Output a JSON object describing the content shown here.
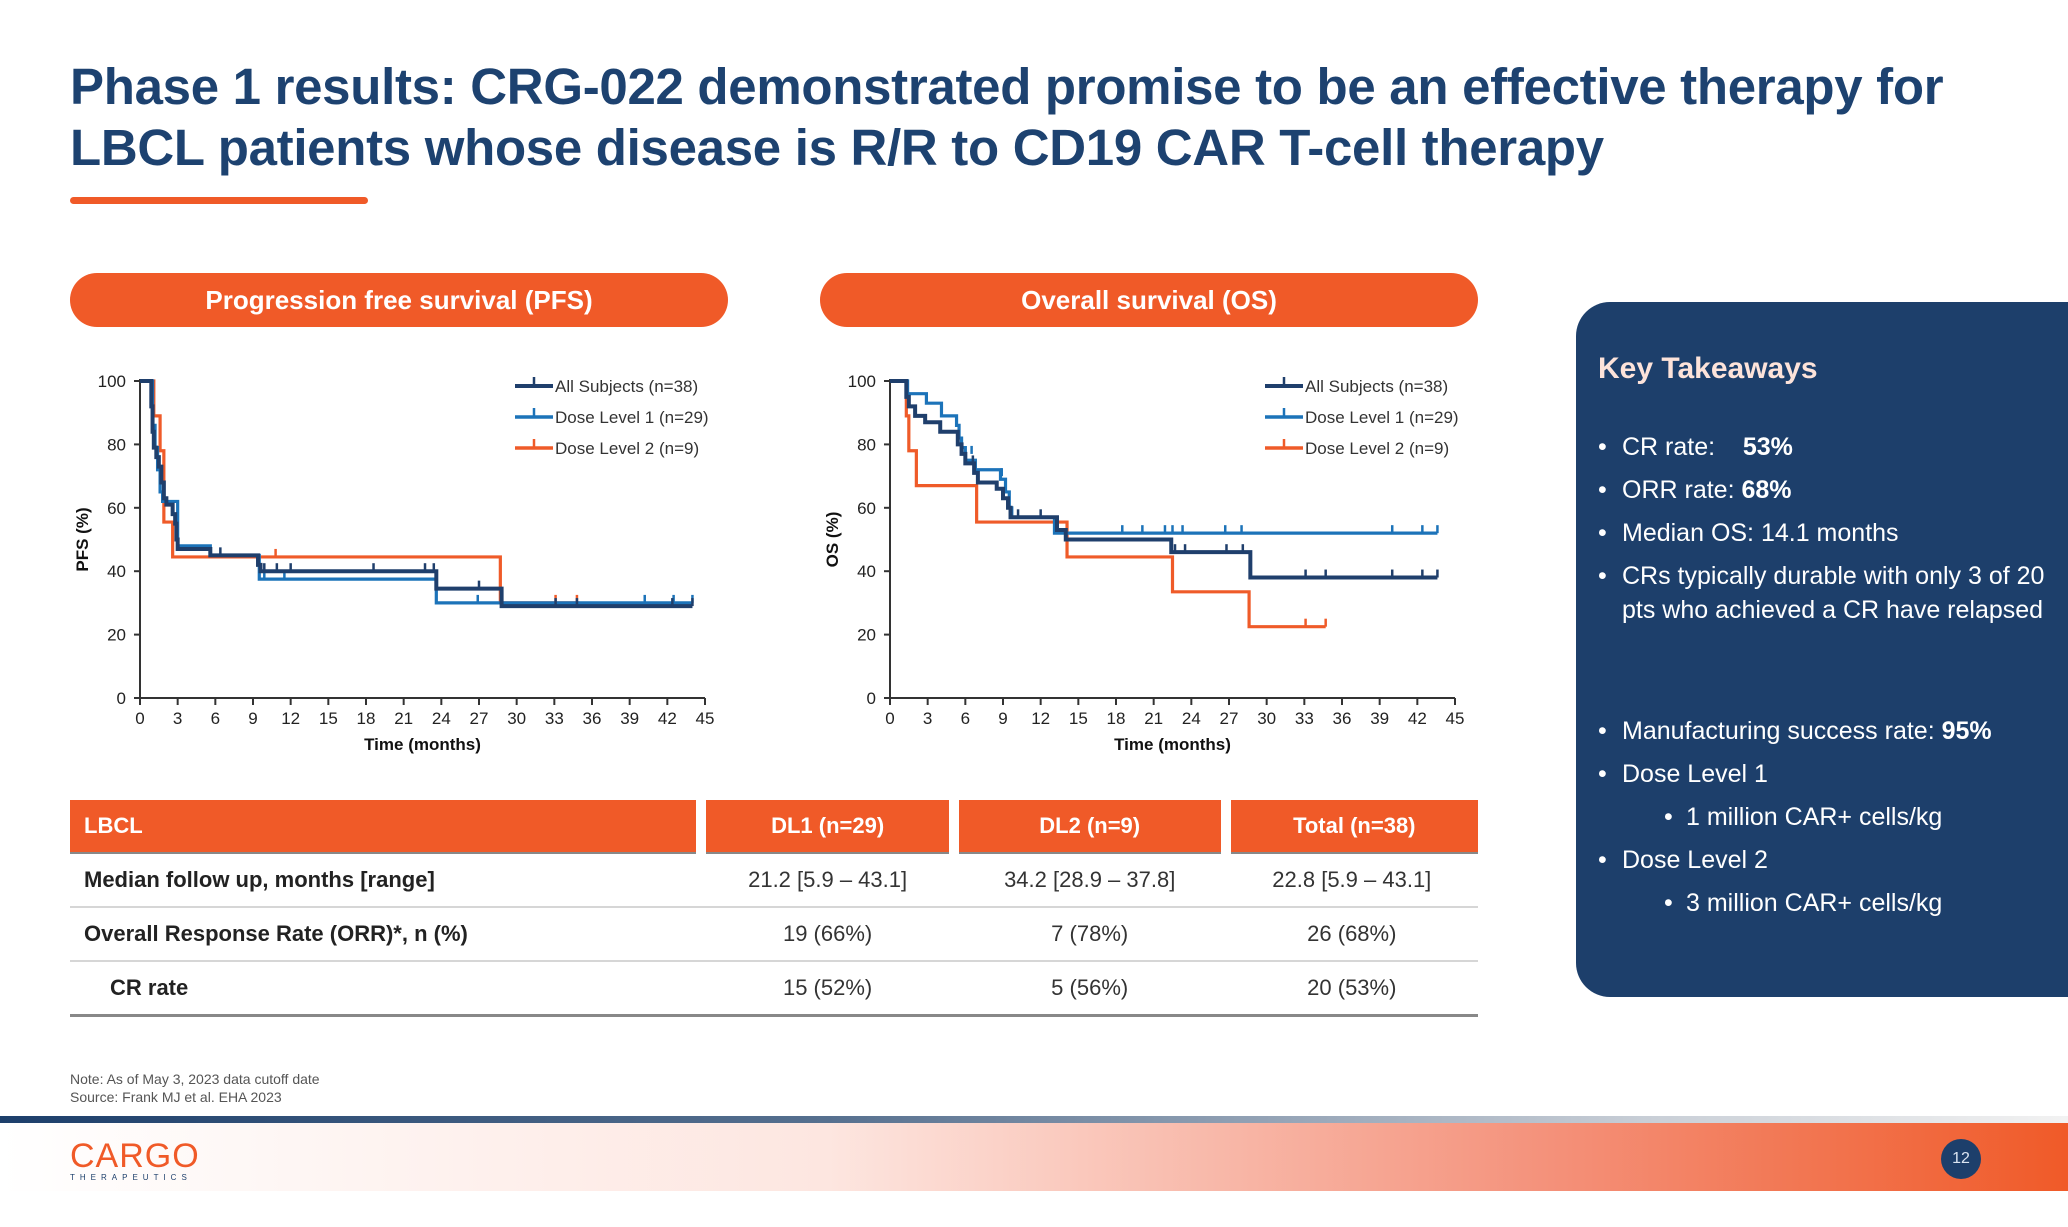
{
  "title": "Phase 1 results: CRG-022 demonstrated promise to be an effective therapy for LBCL patients whose disease is R/R to CD19 CAR T-cell therapy",
  "sections": {
    "pfs_header": "Progression free survival (PFS)",
    "os_header": "Overall survival (OS)"
  },
  "colors": {
    "accent_orange": "#f05a28",
    "navy": "#1d3f6b",
    "all_subjects": "#1f3f6c",
    "dose_level_1": "#1c73b9",
    "dose_level_2": "#ef5b29"
  },
  "chart_data": [
    {
      "type": "line",
      "subtype": "kaplan-meier",
      "title": "Progression free survival (PFS)",
      "xlabel": "Time (months)",
      "ylabel": "PFS (%)",
      "xlim": [
        0,
        45
      ],
      "ylim": [
        0,
        100
      ],
      "xticks": [
        0,
        3,
        6,
        9,
        12,
        15,
        18,
        21,
        24,
        27,
        30,
        33,
        36,
        39,
        42,
        45
      ],
      "yticks": [
        0,
        20,
        40,
        60,
        80,
        100
      ],
      "grid": false,
      "legend_position": "top-right",
      "series": [
        {
          "name": "All Subjects (n=38)",
          "color_key": "all_subjects",
          "steps": [
            [
              0,
              100
            ],
            [
              0.7,
              100
            ],
            [
              0.9,
              92
            ],
            [
              1.0,
              84
            ],
            [
              1.1,
              79
            ],
            [
              1.3,
              76
            ],
            [
              1.5,
              73
            ],
            [
              1.7,
              68
            ],
            [
              1.9,
              63
            ],
            [
              2.1,
              61
            ],
            [
              2.6,
              58
            ],
            [
              2.8,
              55
            ],
            [
              2.9,
              50
            ],
            [
              3.0,
              47
            ],
            [
              5.6,
              47
            ],
            [
              5.6,
              45
            ],
            [
              9.2,
              45
            ],
            [
              9.4,
              42
            ],
            [
              9.6,
              40
            ],
            [
              23.6,
              40
            ],
            [
              23.6,
              34.5
            ],
            [
              28.8,
              34.5
            ],
            [
              28.8,
              29
            ],
            [
              44,
              29
            ]
          ],
          "censors": [
            [
              6.4,
              45
            ],
            [
              9.9,
              40
            ],
            [
              10.9,
              40
            ],
            [
              12.0,
              40
            ],
            [
              18.6,
              40
            ],
            [
              22.7,
              40
            ],
            [
              23.4,
              40
            ],
            [
              27.0,
              34.5
            ],
            [
              33.1,
              29
            ],
            [
              34.8,
              29
            ],
            [
              42.4,
              29
            ],
            [
              44,
              29
            ]
          ]
        },
        {
          "name": "Dose Level 1 (n=29)",
          "color_key": "dose_level_1",
          "steps": [
            [
              0,
              100
            ],
            [
              0.8,
              100
            ],
            [
              1.0,
              86
            ],
            [
              1.2,
              79
            ],
            [
              1.4,
              72
            ],
            [
              1.6,
              65
            ],
            [
              1.8,
              62
            ],
            [
              2.9,
              62
            ],
            [
              3.0,
              52
            ],
            [
              3.0,
              48
            ],
            [
              5.6,
              48
            ],
            [
              5.6,
              45
            ],
            [
              9.3,
              45
            ],
            [
              9.5,
              41
            ],
            [
              9.5,
              37.5
            ],
            [
              23.6,
              37.5
            ],
            [
              23.6,
              30
            ],
            [
              44,
              30
            ]
          ],
          "censors": [
            [
              9.9,
              37.5
            ],
            [
              11.5,
              37.5
            ],
            [
              26.9,
              30
            ],
            [
              40.2,
              30
            ],
            [
              42.5,
              30
            ],
            [
              44,
              30
            ]
          ]
        },
        {
          "name": "Dose Level 2 (n=9)",
          "color_key": "dose_level_2",
          "steps": [
            [
              0,
              100
            ],
            [
              1.0,
              100
            ],
            [
              1.1,
              89
            ],
            [
              1.6,
              89
            ],
            [
              1.6,
              78
            ],
            [
              1.9,
              78
            ],
            [
              1.9,
              55.5
            ],
            [
              2.6,
              55.5
            ],
            [
              2.6,
              44.5
            ],
            [
              28.7,
              44.5
            ],
            [
              28.7,
              30
            ],
            [
              35,
              30
            ]
          ],
          "censors": [
            [
              10.8,
              44.5
            ],
            [
              33.1,
              30
            ],
            [
              34.8,
              30
            ]
          ]
        }
      ]
    },
    {
      "type": "line",
      "subtype": "kaplan-meier",
      "title": "Overall survival (OS)",
      "xlabel": "Time (months)",
      "ylabel": "OS (%)",
      "xlim": [
        0,
        45
      ],
      "ylim": [
        0,
        100
      ],
      "xticks": [
        0,
        3,
        6,
        9,
        12,
        15,
        18,
        21,
        24,
        27,
        30,
        33,
        36,
        39,
        42,
        45
      ],
      "yticks": [
        0,
        20,
        40,
        60,
        80,
        100
      ],
      "grid": false,
      "legend_position": "top-right",
      "series": [
        {
          "name": "All Subjects (n=38)",
          "color_key": "all_subjects",
          "steps": [
            [
              0,
              100
            ],
            [
              1.2,
              100
            ],
            [
              1.3,
              95
            ],
            [
              1.5,
              92
            ],
            [
              2.0,
              92
            ],
            [
              2.0,
              89
            ],
            [
              2.8,
              89
            ],
            [
              2.8,
              87
            ],
            [
              4.0,
              87
            ],
            [
              4.0,
              84
            ],
            [
              5.3,
              84
            ],
            [
              5.4,
              80
            ],
            [
              5.7,
              77
            ],
            [
              6.0,
              74
            ],
            [
              6.6,
              74
            ],
            [
              6.7,
              71
            ],
            [
              7.0,
              68
            ],
            [
              8.4,
              68
            ],
            [
              8.5,
              66
            ],
            [
              9.0,
              63
            ],
            [
              9.4,
              60
            ],
            [
              9.6,
              57
            ],
            [
              13.3,
              57
            ],
            [
              13.3,
              53
            ],
            [
              14.0,
              53
            ],
            [
              14.0,
              50
            ],
            [
              22.4,
              50
            ],
            [
              22.4,
              46
            ],
            [
              28.7,
              46
            ],
            [
              28.7,
              38
            ],
            [
              43.6,
              38
            ]
          ],
          "censors": [
            [
              6.6,
              74
            ],
            [
              10.2,
              57
            ],
            [
              12.0,
              57
            ],
            [
              22.7,
              46
            ],
            [
              23.5,
              46
            ],
            [
              26.8,
              46
            ],
            [
              28.1,
              46
            ],
            [
              33.1,
              38
            ],
            [
              34.7,
              38
            ],
            [
              40.0,
              38
            ],
            [
              42.4,
              38
            ],
            [
              43.6,
              38
            ]
          ]
        },
        {
          "name": "Dose Level 1 (n=29)",
          "color_key": "dose_level_1",
          "steps": [
            [
              0,
              100
            ],
            [
              1.2,
              100
            ],
            [
              1.4,
              96
            ],
            [
              2.9,
              96
            ],
            [
              2.9,
              93
            ],
            [
              4.1,
              93
            ],
            [
              4.1,
              89
            ],
            [
              5.1,
              89
            ],
            [
              5.3,
              86
            ],
            [
              5.5,
              82
            ],
            [
              5.7,
              79
            ],
            [
              6.0,
              75
            ],
            [
              6.6,
              75
            ],
            [
              6.8,
              72
            ],
            [
              8.6,
              72
            ],
            [
              8.8,
              69
            ],
            [
              9.2,
              65
            ],
            [
              9.5,
              60
            ],
            [
              9.7,
              57
            ],
            [
              13.1,
              57
            ],
            [
              13.1,
              52
            ],
            [
              43.6,
              52
            ]
          ],
          "censors": [
            [
              6.5,
              77
            ],
            [
              8.9,
              70
            ],
            [
              18.5,
              52
            ],
            [
              20.1,
              52
            ],
            [
              21.9,
              52
            ],
            [
              22.5,
              52
            ],
            [
              23.3,
              52
            ],
            [
              26.7,
              52
            ],
            [
              28.0,
              52
            ],
            [
              40.0,
              52
            ],
            [
              42.4,
              52
            ],
            [
              43.6,
              52
            ]
          ]
        },
        {
          "name": "Dose Level 2 (n=9)",
          "color_key": "dose_level_2",
          "steps": [
            [
              0,
              100
            ],
            [
              1.2,
              100
            ],
            [
              1.3,
              89
            ],
            [
              1.5,
              89
            ],
            [
              1.5,
              78
            ],
            [
              2.1,
              78
            ],
            [
              2.1,
              67
            ],
            [
              6.9,
              67
            ],
            [
              6.9,
              55.5
            ],
            [
              14.1,
              55.5
            ],
            [
              14.1,
              44.5
            ],
            [
              22.5,
              44.5
            ],
            [
              22.5,
              33.5
            ],
            [
              28.6,
              33.5
            ],
            [
              28.6,
              22.5
            ],
            [
              34.7,
              22.5
            ]
          ],
          "censors": [
            [
              33.1,
              22.5
            ],
            [
              34.7,
              22.5
            ]
          ]
        }
      ]
    }
  ],
  "table": {
    "headers": [
      "LBCL",
      "DL1 (n=29)",
      "DL2 (n=9)",
      "Total (n=38)"
    ],
    "rows": [
      {
        "label": "Median follow up, months [range]",
        "values": [
          "21.2 [5.9 – 43.1]",
          "34.2 [28.9 – 37.8]",
          "22.8 [5.9 – 43.1]"
        ]
      },
      {
        "label": "Overall Response Rate (ORR)*, n (%)",
        "values": [
          "19 (66%)",
          "7 (78%)",
          "26 (68%)"
        ]
      },
      {
        "label": "CR rate",
        "values": [
          "15 (52%)",
          "5 (56%)",
          "20 (53%)"
        ]
      }
    ]
  },
  "takeaways": {
    "title": "Key Takeaways",
    "items": [
      {
        "label": "CR rate:",
        "value": "53%"
      },
      {
        "label": "ORR rate:",
        "value": "68%"
      },
      {
        "label": "Median OS: 14.1 months",
        "value": ""
      },
      {
        "label": "CRs typically durable with only 3 of 20 pts who achieved a CR have relapsed",
        "value": ""
      }
    ],
    "items2": [
      {
        "label": "Manufacturing success rate:",
        "value": "95%"
      },
      {
        "label": "Dose Level 1",
        "value": ""
      },
      {
        "label": "1 million CAR+ cells/kg",
        "value": "",
        "sub": true
      },
      {
        "label": "Dose Level 2",
        "value": ""
      },
      {
        "label": "3 million CAR+ cells/kg",
        "value": "",
        "sub": true
      }
    ]
  },
  "notes": {
    "note": "Note: As of May 3, 2023 data cutoff date",
    "source": "Source: Frank MJ et al. EHA 2023"
  },
  "footer": {
    "logo_word": "CARGO",
    "logo_sub": "THERAPEUTICS",
    "page_number": "12"
  }
}
